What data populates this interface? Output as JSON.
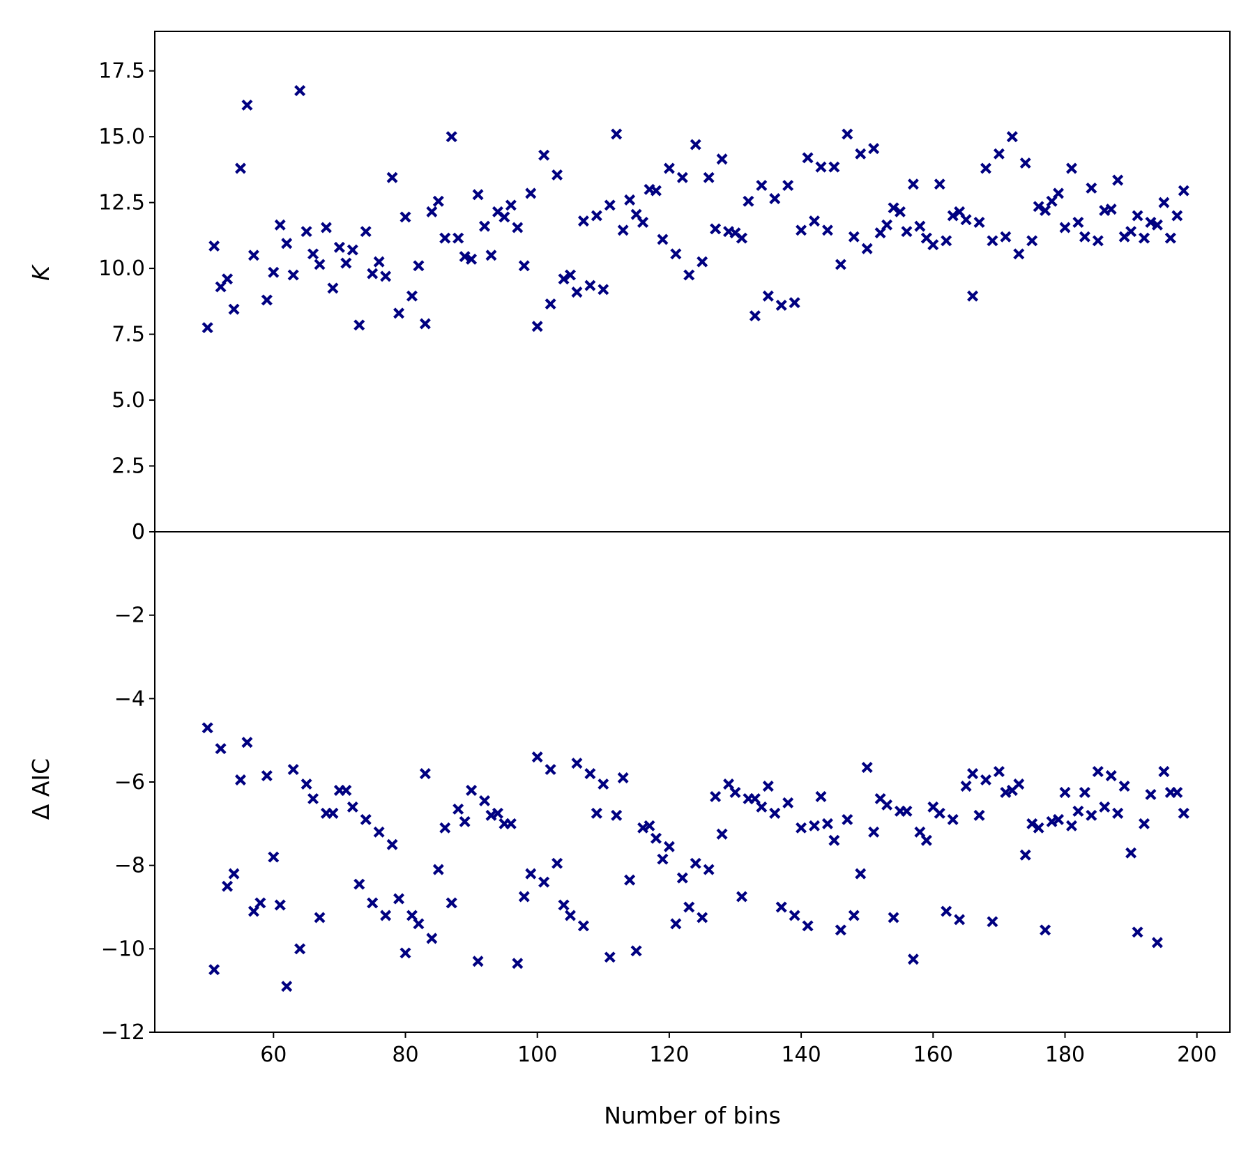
{
  "chart_data": {
    "type": "scatter",
    "marker": "x",
    "color": "#000080",
    "xlabel": "Number of bins",
    "xlim": [
      42,
      205
    ],
    "xticks": [
      60,
      80,
      100,
      120,
      140,
      160,
      180,
      200
    ],
    "x": [
      50,
      51,
      52,
      53,
      54,
      55,
      56,
      57,
      58,
      59,
      60,
      61,
      62,
      63,
      64,
      65,
      66,
      67,
      68,
      69,
      70,
      71,
      72,
      73,
      74,
      75,
      76,
      77,
      78,
      79,
      80,
      81,
      82,
      83,
      84,
      85,
      86,
      87,
      88,
      89,
      90,
      91,
      92,
      93,
      94,
      95,
      96,
      97,
      98,
      99,
      100,
      101,
      102,
      103,
      104,
      105,
      106,
      107,
      108,
      109,
      110,
      111,
      112,
      113,
      114,
      115,
      116,
      117,
      118,
      119,
      120,
      121,
      122,
      123,
      124,
      125,
      126,
      127,
      128,
      129,
      130,
      131,
      132,
      133,
      134,
      135,
      136,
      137,
      138,
      139,
      140,
      141,
      142,
      143,
      144,
      145,
      146,
      147,
      148,
      149,
      150,
      151,
      152,
      153,
      154,
      155,
      156,
      157,
      158,
      159,
      160,
      161,
      162,
      163,
      164,
      165,
      166,
      167,
      168,
      169,
      170,
      171,
      172,
      173,
      174,
      175,
      176,
      177,
      178,
      179,
      180,
      181,
      182,
      183,
      184,
      185,
      186,
      187,
      188,
      189,
      190,
      191,
      192,
      193,
      194,
      195,
      196,
      197,
      198
    ],
    "panels": [
      {
        "ylabel": "K",
        "ylim": [
          0,
          19
        ],
        "yticks": [
          "0",
          "2.5",
          "5.0",
          "7.5",
          "10.0",
          "12.5",
          "15.0",
          "17.5"
        ],
        "ytick_values": [
          0,
          2.5,
          5.0,
          7.5,
          10.0,
          12.5,
          15.0,
          17.5
        ],
        "values": [
          7.75,
          10.85,
          9.3,
          9.6,
          8.45,
          13.8,
          16.2,
          10.5,
          null,
          8.8,
          9.85,
          11.65,
          10.95,
          9.75,
          16.75,
          11.4,
          10.55,
          10.15,
          11.55,
          9.25,
          10.8,
          10.2,
          10.7,
          7.85,
          11.4,
          9.8,
          10.25,
          9.7,
          13.45,
          8.3,
          11.95,
          8.95,
          10.1,
          7.9,
          12.15,
          12.55,
          11.15,
          15.0,
          11.15,
          10.45,
          10.35,
          12.8,
          11.6,
          10.5,
          12.15,
          11.95,
          12.4,
          11.55,
          10.1,
          12.85,
          7.8,
          14.3,
          8.65,
          13.55,
          9.6,
          9.75,
          9.1,
          11.8,
          9.35,
          12.0,
          9.2,
          12.4,
          15.1,
          11.45,
          12.6,
          12.05,
          11.75,
          13.0,
          12.95,
          11.1,
          13.8,
          10.55,
          13.45,
          9.75,
          14.7,
          10.25,
          13.45,
          11.5,
          14.15,
          11.4,
          11.35,
          11.15,
          12.55,
          8.2,
          13.15,
          8.95,
          12.65,
          8.6,
          13.15,
          8.7,
          11.45,
          14.2,
          11.8,
          13.85,
          11.45,
          13.85,
          10.15,
          15.1,
          11.2,
          14.35,
          10.75,
          14.55,
          11.35,
          11.65,
          12.3,
          12.15,
          11.4,
          13.2,
          11.6,
          11.15,
          10.9,
          13.2,
          11.05,
          12.0,
          12.15,
          11.85,
          8.95,
          11.75,
          13.8,
          11.05,
          14.35,
          11.2,
          15.0,
          10.55,
          14.0,
          11.05,
          12.35,
          12.2,
          12.55,
          12.85,
          11.55,
          13.8,
          11.75,
          11.2,
          13.05,
          11.05,
          12.2,
          12.25,
          13.35,
          11.2,
          11.4,
          12.0,
          11.15,
          11.75,
          11.65,
          12.5,
          11.15,
          12.0,
          12.95
        ]
      },
      {
        "ylabel": "Δ AIC",
        "ylim": [
          -12,
          0
        ],
        "yticks": [
          "0",
          "−2",
          "−4",
          "−6",
          "−8",
          "−10",
          "−12"
        ],
        "ytick_values": [
          0,
          -2,
          -4,
          -6,
          -8,
          -10,
          -12
        ],
        "values": [
          -4.7,
          -10.5,
          -5.2,
          -8.5,
          -8.2,
          -5.95,
          -5.05,
          -9.1,
          -8.9,
          -5.85,
          -7.8,
          -8.95,
          -10.9,
          -5.7,
          -10.0,
          -6.05,
          -6.4,
          -9.25,
          -6.75,
          -6.75,
          -6.2,
          -6.2,
          -6.6,
          -8.45,
          -6.9,
          -8.9,
          -7.2,
          -9.2,
          -7.5,
          -8.8,
          -10.1,
          -9.2,
          -9.4,
          -5.8,
          -9.75,
          -8.1,
          -7.1,
          -8.9,
          -6.65,
          -6.95,
          -6.2,
          -10.3,
          -6.45,
          -6.8,
          -6.75,
          -7.0,
          -7.0,
          -10.35,
          -8.75,
          -8.2,
          -5.4,
          -8.4,
          -5.7,
          -7.95,
          -8.95,
          -9.2,
          -5.55,
          -9.45,
          -5.8,
          -6.75,
          -6.05,
          -10.2,
          -6.8,
          -5.9,
          -8.35,
          -10.05,
          -7.1,
          -7.05,
          -7.35,
          -7.85,
          -7.55,
          -9.4,
          -8.3,
          -9.0,
          -7.95,
          -9.25,
          -8.1,
          -6.35,
          -7.25,
          -6.05,
          -6.25,
          -8.75,
          -6.4,
          -6.4,
          -6.6,
          -6.1,
          -6.75,
          -9.0,
          -6.5,
          -9.2,
          -7.1,
          -9.45,
          -7.05,
          -6.35,
          -7.0,
          -7.4,
          -9.55,
          -6.9,
          -9.2,
          -8.2,
          -5.65,
          -7.2,
          -6.4,
          -6.55,
          -9.25,
          -6.7,
          -6.7,
          -10.25,
          -7.2,
          -7.4,
          -6.6,
          -6.75,
          -9.1,
          -6.9,
          -9.3,
          -6.1,
          -5.8,
          -6.8,
          -5.95,
          -9.35,
          -5.75,
          -6.25,
          -6.2,
          -6.05,
          -7.75,
          -7.0,
          -7.1,
          -9.55,
          -6.95,
          -6.9,
          -6.25,
          -7.05,
          -6.7,
          -6.25,
          -6.8,
          -5.75,
          -6.6,
          -5.85,
          -6.75,
          -6.1,
          -7.7,
          -9.6,
          -7.0,
          -6.3,
          -9.85,
          -5.75,
          -6.25,
          -6.25,
          -6.75
        ]
      }
    ]
  }
}
